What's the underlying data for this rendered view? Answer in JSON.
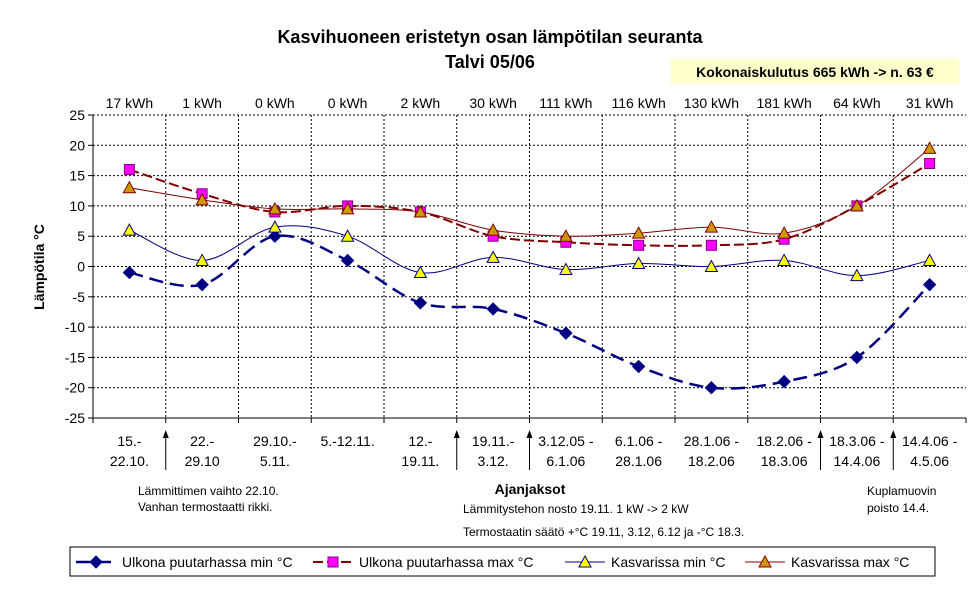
{
  "chart_data": {
    "type": "line",
    "title": "Kasvihuoneen eristetyn osan lämpötilan seuranta",
    "subtitle": "Talvi 05/06",
    "total_badge": "Kokonaiskulutus 665 kWh -> n. 63 €",
    "xlabel": "Ajanjaksot",
    "ylabel": "Lämpötila °C",
    "ylim": [
      -25,
      25
    ],
    "y_ticks": [
      "25",
      "20",
      "15",
      "10",
      "5",
      "0",
      "-5",
      "-10",
      "-15",
      "-20",
      "-25"
    ],
    "grid": true,
    "legend_position": "bottom",
    "categories": [
      [
        "15.-",
        "22.10."
      ],
      [
        "22.-",
        "29.10"
      ],
      [
        "29.10.-",
        "5.11."
      ],
      [
        "5.-12.11.",
        ""
      ],
      [
        "12.-",
        "19.11."
      ],
      [
        "19.11.-",
        "3.12."
      ],
      [
        "3.12.05 -",
        "6.1.06"
      ],
      [
        "6.1.06 -",
        "28.1.06"
      ],
      [
        "28.1.06 -",
        "18.2.06"
      ],
      [
        "18.2.06 -",
        "18.3.06"
      ],
      [
        "18.3.06 -",
        "14.4.06"
      ],
      [
        "14.4.06 -",
        "4.5.06"
      ]
    ],
    "energy_labels": [
      "17 kWh",
      "1 kWh",
      "0 kWh",
      "0 kWh",
      "2 kWh",
      "30 kWh",
      "111 kWh",
      "116 kWh",
      "130 kWh",
      "181 kWh",
      "64 kWh",
      "31 kWh"
    ],
    "series": [
      {
        "name": "Ulkona puutarhassa min °C",
        "color": "#000080",
        "values": [
          -1,
          -3,
          5,
          1,
          -6,
          -7,
          -11,
          -16.5,
          -20,
          -19,
          -15,
          -3
        ]
      },
      {
        "name": "Ulkona puutarhassa max °C",
        "color": "#800000",
        "values": [
          16,
          12,
          9,
          10,
          9,
          5,
          4,
          3.5,
          3.5,
          4.5,
          10,
          17
        ]
      },
      {
        "name": "Kasvarissa min °C",
        "color": "#000080",
        "values": [
          6,
          1,
          6.5,
          5,
          -1,
          1.5,
          -0.5,
          0.5,
          0,
          1,
          -1.5,
          1
        ]
      },
      {
        "name": "Kasvarissa max °C",
        "color": "#800000",
        "values": [
          13,
          11,
          9.5,
          9.5,
          9,
          6,
          5,
          5.5,
          6.5,
          5.5,
          10,
          19.5
        ]
      }
    ],
    "notes": {
      "n1": [
        "Lämmittimen vaihto 22.10.",
        "Vanhan termostaatti rikki."
      ],
      "n2": [
        "Lämmitystehon nosto 19.11. 1 kW -> 2 kW"
      ],
      "n3": [
        "Termostaatin säätö +°C 19.11, 3.12,  6.12 ja -°C 18.3."
      ],
      "n4": [
        "Kuplamuovin",
        "poisto 14.4."
      ]
    }
  }
}
